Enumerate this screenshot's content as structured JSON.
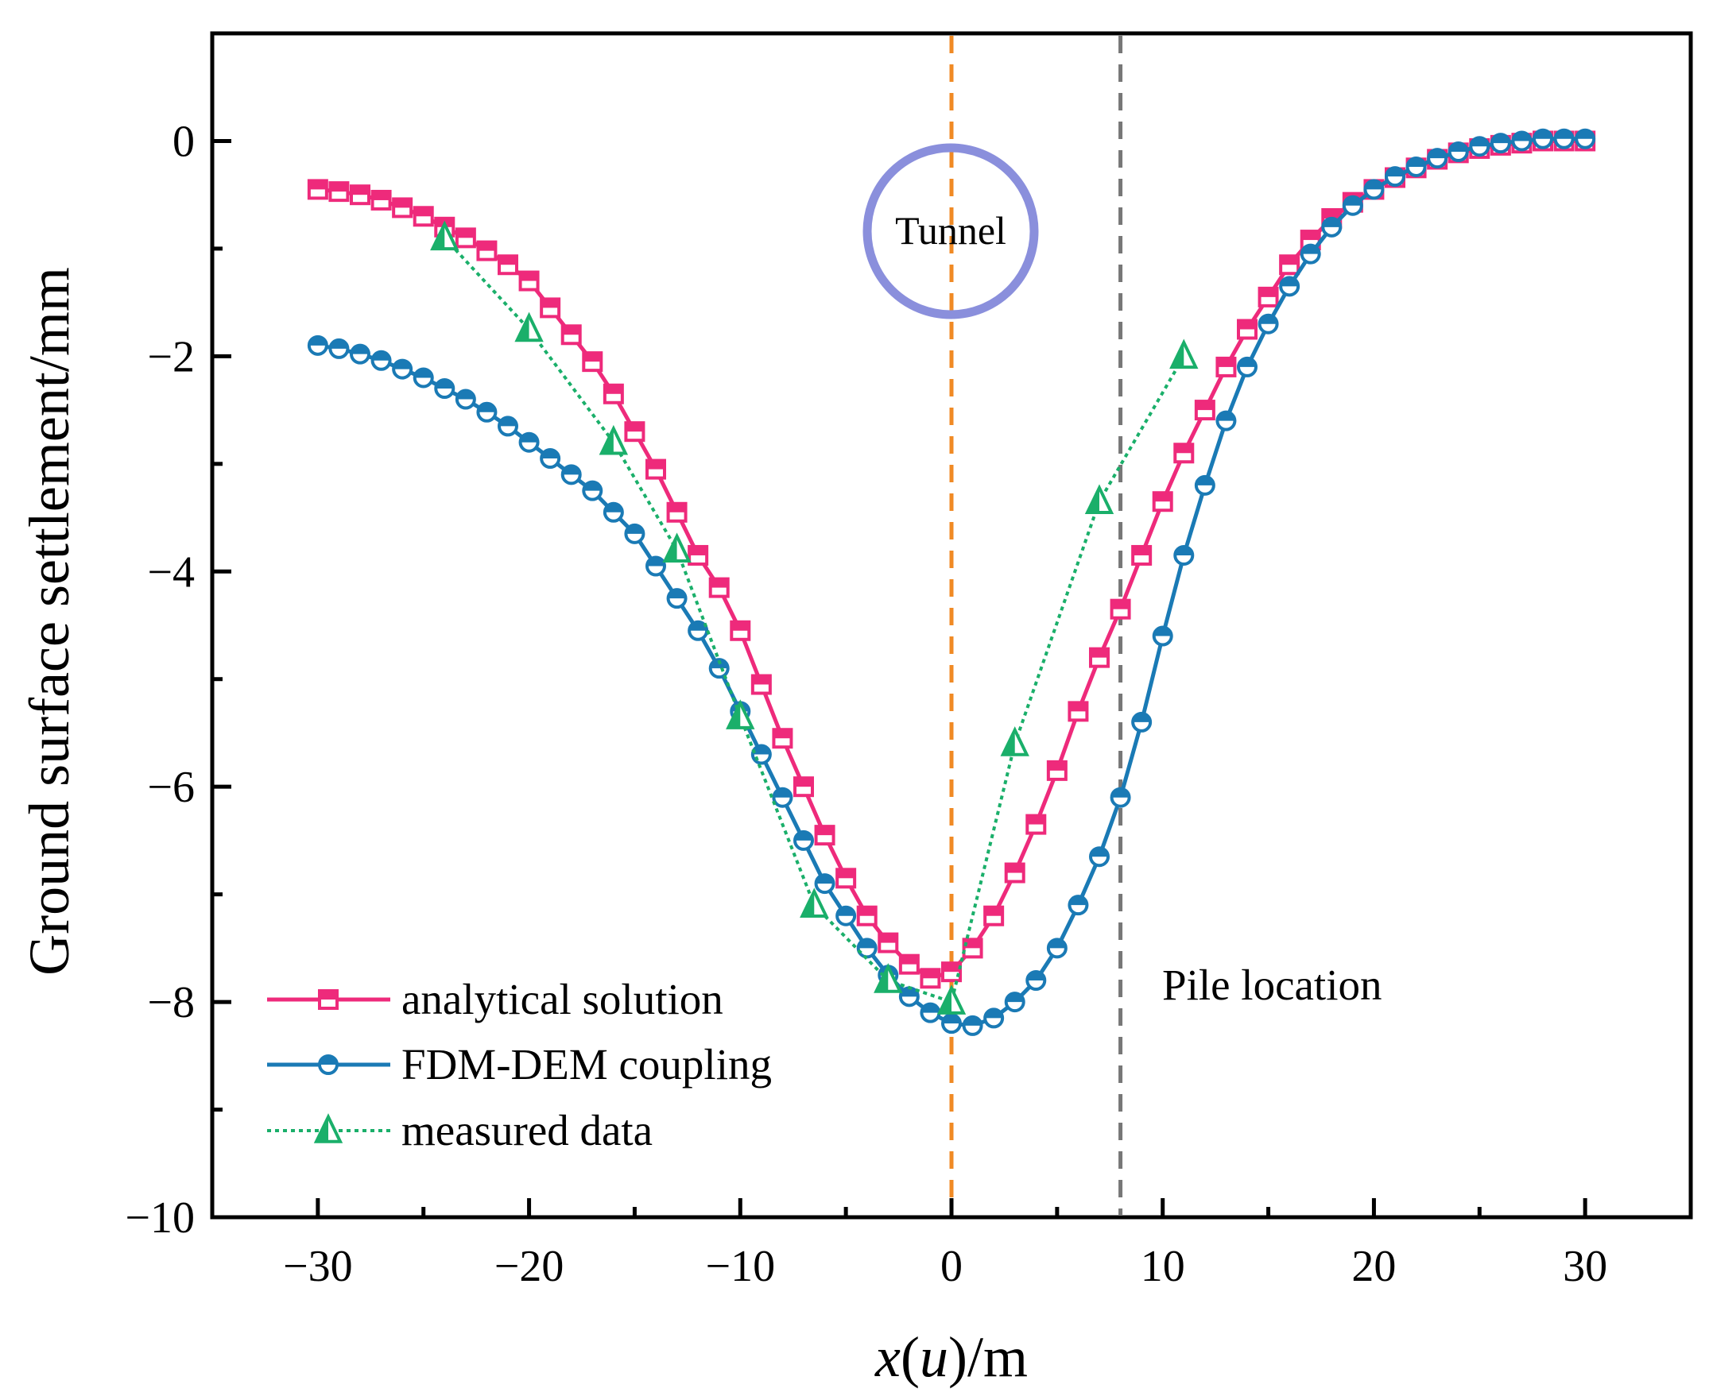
{
  "chart_data": {
    "type": "line",
    "title": "",
    "xlabel": "x(u)/m",
    "xlabel_parts": {
      "x": "x",
      "open": "(",
      "u": "u",
      "rest": ")/m"
    },
    "ylabel": "Ground surface settlement/mm",
    "xlim": [
      -35,
      35
    ],
    "ylim": [
      -10,
      1
    ],
    "xticks": [
      -30,
      -20,
      -10,
      0,
      10,
      20,
      30
    ],
    "xtick_labels": [
      "−30",
      "−20",
      "−10",
      "0",
      "10",
      "20",
      "30"
    ],
    "yticks": [
      0,
      -2,
      -4,
      -6,
      -8,
      -10
    ],
    "ytick_labels": [
      "0",
      "−2",
      "−4",
      "−6",
      "−8",
      "−10"
    ],
    "grid": false,
    "legend_position": "bottom-left",
    "series": [
      {
        "name": "analytical solution",
        "color": "#ee2a7b",
        "marker": "square",
        "line": "solid",
        "x": [
          -30,
          -29,
          -28,
          -27,
          -26,
          -25,
          -24,
          -23,
          -22,
          -21,
          -20,
          -19,
          -18,
          -17,
          -16,
          -15,
          -14,
          -13,
          -12,
          -11,
          -10,
          -9,
          -8,
          -7,
          -6,
          -5,
          -4,
          -3,
          -2,
          -1,
          0,
          1,
          2,
          3,
          4,
          5,
          6,
          7,
          8,
          9,
          10,
          11,
          12,
          13,
          14,
          15,
          16,
          17,
          18,
          19,
          20,
          21,
          22,
          23,
          24,
          25,
          26,
          27,
          28,
          29,
          30
        ],
        "values": [
          -0.45,
          -0.47,
          -0.5,
          -0.55,
          -0.62,
          -0.7,
          -0.8,
          -0.9,
          -1.02,
          -1.15,
          -1.3,
          -1.55,
          -1.8,
          -2.05,
          -2.35,
          -2.7,
          -3.05,
          -3.45,
          -3.85,
          -4.15,
          -4.55,
          -5.05,
          -5.55,
          -6.0,
          -6.45,
          -6.85,
          -7.2,
          -7.45,
          -7.65,
          -7.78,
          -7.72,
          -7.5,
          -7.2,
          -6.8,
          -6.35,
          -5.85,
          -5.3,
          -4.8,
          -4.35,
          -3.85,
          -3.35,
          -2.9,
          -2.5,
          -2.1,
          -1.75,
          -1.45,
          -1.15,
          -0.92,
          -0.72,
          -0.57,
          -0.45,
          -0.34,
          -0.25,
          -0.17,
          -0.11,
          -0.07,
          -0.04,
          -0.02,
          0.0,
          0.0,
          0.0
        ]
      },
      {
        "name": "FDM-DEM coupling",
        "color": "#1a7ab5",
        "marker": "circle",
        "line": "solid",
        "x": [
          -30,
          -29,
          -28,
          -27,
          -26,
          -25,
          -24,
          -23,
          -22,
          -21,
          -20,
          -19,
          -18,
          -17,
          -16,
          -15,
          -14,
          -13,
          -12,
          -11,
          -10,
          -9,
          -8,
          -7,
          -6,
          -5,
          -4,
          -3,
          -2,
          -1,
          0,
          1,
          2,
          3,
          4,
          5,
          6,
          7,
          8,
          9,
          10,
          11,
          12,
          13,
          14,
          15,
          16,
          17,
          18,
          19,
          20,
          21,
          22,
          23,
          24,
          25,
          26,
          27,
          28,
          29,
          30
        ],
        "values": [
          -1.9,
          -1.93,
          -1.98,
          -2.04,
          -2.12,
          -2.2,
          -2.3,
          -2.4,
          -2.52,
          -2.65,
          -2.8,
          -2.95,
          -3.1,
          -3.25,
          -3.45,
          -3.65,
          -3.95,
          -4.25,
          -4.55,
          -4.9,
          -5.3,
          -5.7,
          -6.1,
          -6.5,
          -6.9,
          -7.2,
          -7.5,
          -7.75,
          -7.95,
          -8.1,
          -8.2,
          -8.22,
          -8.15,
          -8.0,
          -7.8,
          -7.5,
          -7.1,
          -6.65,
          -6.1,
          -5.4,
          -4.6,
          -3.85,
          -3.2,
          -2.6,
          -2.1,
          -1.7,
          -1.35,
          -1.05,
          -0.8,
          -0.6,
          -0.45,
          -0.33,
          -0.24,
          -0.16,
          -0.1,
          -0.05,
          -0.02,
          0.0,
          0.02,
          0.02,
          0.02
        ]
      },
      {
        "name": "measured data",
        "color": "#1aaf6a",
        "marker": "triangle",
        "line": "dotted",
        "x": [
          -24,
          -20,
          -16,
          -13,
          -10,
          -6.5,
          -3,
          0,
          3,
          7,
          11
        ],
        "values": [
          -0.9,
          -1.75,
          -2.8,
          -3.8,
          -5.35,
          -7.1,
          -7.8,
          -8.0,
          -5.6,
          -3.35,
          -2.0
        ]
      }
    ],
    "reference_lines": [
      {
        "x": 0,
        "color": "#f08a24",
        "style": "dashed"
      },
      {
        "x": 8,
        "color": "#777777",
        "style": "dashed"
      }
    ],
    "annotations": [
      {
        "text": "Tunnel",
        "x": 0,
        "y": -0.9,
        "shape": "circle",
        "color": "#8a8fdc"
      },
      {
        "text": "Pile location",
        "x": 10,
        "y": -7.9
      }
    ]
  }
}
